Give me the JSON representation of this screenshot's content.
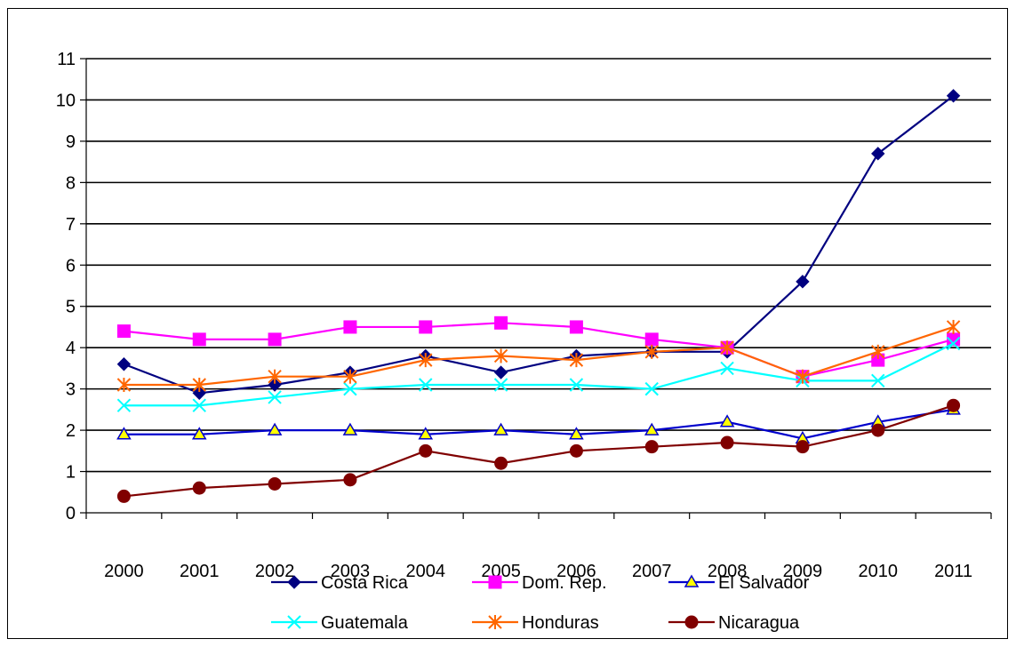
{
  "chart_data": {
    "type": "line",
    "title": "",
    "xlabel": "",
    "ylabel": "",
    "categories": [
      "2000",
      "2001",
      "2002",
      "2003",
      "2004",
      "2005",
      "2006",
      "2007",
      "2008",
      "2009",
      "2010",
      "2011"
    ],
    "ylim": [
      0,
      11
    ],
    "yticks": [
      "0",
      "1",
      "2",
      "3",
      "4",
      "5",
      "6",
      "7",
      "8",
      "9",
      "10",
      "11"
    ],
    "grid": true,
    "legend_position": "bottom",
    "series": [
      {
        "name": "Costa Rica",
        "color": "#000080",
        "marker": "diamond",
        "values": [
          3.6,
          2.9,
          3.1,
          3.4,
          3.8,
          3.4,
          3.8,
          3.9,
          3.9,
          5.6,
          8.7,
          10.1
        ]
      },
      {
        "name": "Dom. Rep.",
        "color": "#FF00FF",
        "marker": "square",
        "values": [
          4.4,
          4.2,
          4.2,
          4.5,
          4.5,
          4.6,
          4.5,
          4.2,
          4.0,
          3.3,
          3.7,
          4.2
        ]
      },
      {
        "name": "El Salvador",
        "color": "#0000CC",
        "marker": "triangle",
        "values": [
          1.9,
          1.9,
          2.0,
          2.0,
          1.9,
          2.0,
          1.9,
          2.0,
          2.2,
          1.8,
          2.2,
          2.5
        ]
      },
      {
        "name": "Guatemala",
        "color": "#00FFFF",
        "marker": "x",
        "values": [
          2.6,
          2.6,
          2.8,
          3.0,
          3.1,
          3.1,
          3.1,
          3.0,
          3.5,
          3.2,
          3.2,
          4.1
        ]
      },
      {
        "name": "Honduras",
        "color": "#FF6600",
        "marker": "star",
        "values": [
          3.1,
          3.1,
          3.3,
          3.3,
          3.7,
          3.8,
          3.7,
          3.9,
          4.0,
          3.3,
          3.9,
          4.5
        ]
      },
      {
        "name": "Nicaragua",
        "color": "#800000",
        "marker": "circle",
        "values": [
          0.4,
          0.6,
          0.7,
          0.8,
          1.5,
          1.2,
          1.5,
          1.6,
          1.7,
          1.6,
          2.0,
          2.6
        ]
      }
    ]
  }
}
